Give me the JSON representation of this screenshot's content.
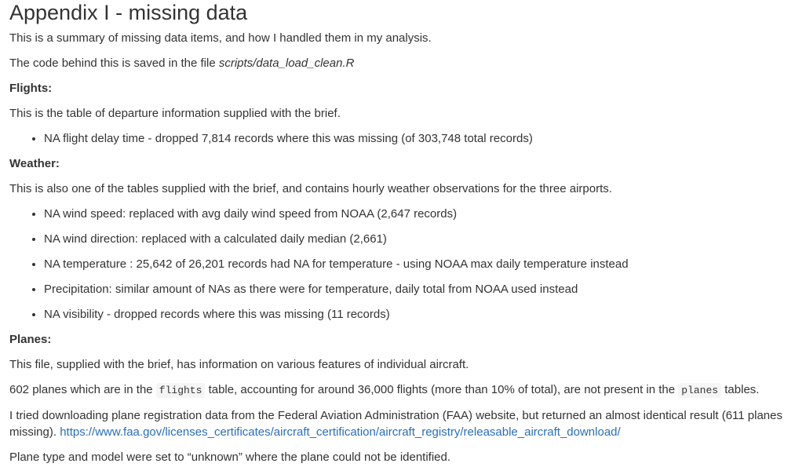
{
  "title": "Appendix I - missing data",
  "intro": {
    "summary": "This is a summary of missing data items, and how I handled them in my analysis.",
    "code_prefix": "The code behind this is saved in the file ",
    "code_file": "scripts/data_load_clean.R"
  },
  "flights": {
    "heading": "Flights:",
    "description": "This is the table of departure information supplied with the brief.",
    "items": [
      "NA flight delay time - dropped 7,814 records where this was missing (of 303,748 total records)"
    ]
  },
  "weather": {
    "heading": "Weather:",
    "description": "This is also one of the tables supplied with the brief, and contains hourly weather observations for the three airports.",
    "items": [
      "NA wind speed: replaced with avg daily wind speed from NOAA (2,647 records)",
      "NA wind direction: replaced with a calculated daily median (2,661)",
      "NA temperature : 25,642 of 26,201 records had NA for temperature - using NOAA max daily temperature instead",
      "Precipitation: similar amount of NAs as there were for temperature, daily total from NOAA used instead",
      "NA visibility - dropped records where this was missing (11 records)"
    ]
  },
  "planes": {
    "heading": "Planes:",
    "description": "This file, supplied with the brief, has information on various features of individual aircraft.",
    "missing_part1": "602 planes which are in the ",
    "missing_code1": "flights",
    "missing_part2": " table, accounting for around 36,000 flights (more than 10% of total), are not present in the ",
    "missing_code2": "planes",
    "missing_part3": " tables.",
    "faa_text": "I tried downloading plane registration data from the Federal Aviation Administration (FAA) website, but returned an almost identical result (611 planes missing). ",
    "faa_link": "https://www.faa.gov/licenses_certificates/aircraft_certification/aircraft_registry/releasable_aircraft_download/",
    "unknown_note": "Plane type and model were set to “unknown” where the plane could not be identified."
  }
}
